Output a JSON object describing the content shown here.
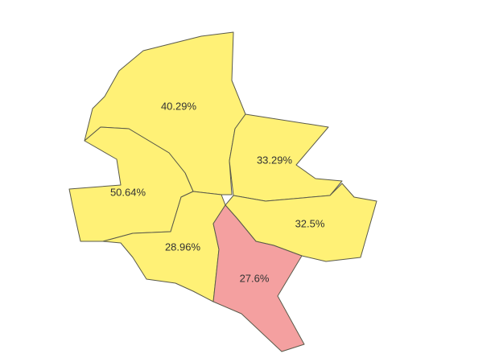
{
  "map": {
    "colors": {
      "yellow": "#fff176",
      "red": "#f4a0a0",
      "border": "#5a5a4a"
    },
    "regions": [
      {
        "id": "north",
        "label": "40.29%",
        "fill": "yellow"
      },
      {
        "id": "northeast",
        "label": "33.29%",
        "fill": "yellow"
      },
      {
        "id": "west",
        "label": "50.64%",
        "fill": "yellow"
      },
      {
        "id": "east",
        "label": "32.5%",
        "fill": "yellow"
      },
      {
        "id": "southwest",
        "label": "28.96%",
        "fill": "yellow"
      },
      {
        "id": "south",
        "label": "27.6%",
        "fill": "red"
      }
    ]
  }
}
